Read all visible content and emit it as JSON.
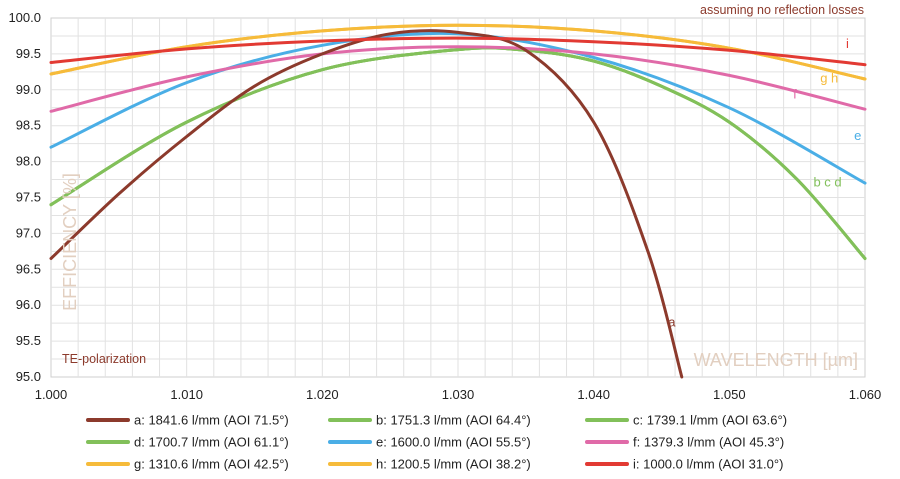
{
  "chart_data": {
    "type": "line",
    "xlabel": "WAVELENGTH [µm]",
    "ylabel": "EFFICIENCY [%]",
    "xlim": [
      1.0,
      1.06
    ],
    "ylim": [
      95.0,
      100.0
    ],
    "x_ticks": [
      "1.000",
      "1.010",
      "1.020",
      "1.030",
      "1.040",
      "1.050",
      "1.060"
    ],
    "y_ticks": [
      "95.0",
      "95.5",
      "96.0",
      "96.5",
      "97.0",
      "97.5",
      "98.0",
      "98.5",
      "99.0",
      "99.5",
      "100.0"
    ],
    "grid": true,
    "annotations": {
      "top_right": "assuming no reflection losses",
      "bottom_left": "TE-polarization"
    },
    "series": [
      {
        "id": "a",
        "name": "a: 1841.6 l/mm (AOI 71.5°)",
        "color": "#8c3a2c",
        "x": [
          1.0,
          1.005,
          1.01,
          1.015,
          1.02,
          1.025,
          1.03,
          1.035,
          1.04,
          1.044,
          1.0465
        ],
        "y": [
          96.65,
          97.55,
          98.35,
          99.05,
          99.5,
          99.78,
          99.8,
          99.55,
          98.55,
          96.75,
          95.0
        ]
      },
      {
        "id": "b",
        "name": "b: 1751.3 l/mm (AOI 64.4°)",
        "color": "#82c05a",
        "x": [
          1.0,
          1.01,
          1.02,
          1.03,
          1.035,
          1.04,
          1.045,
          1.05,
          1.055,
          1.06
        ],
        "y": [
          97.4,
          98.55,
          99.28,
          99.56,
          99.55,
          99.4,
          99.05,
          98.55,
          97.75,
          96.65
        ]
      },
      {
        "id": "c",
        "name": "c: 1739.1 l/mm (AOI 63.6°)",
        "color": "#82c05a",
        "x": [
          1.0,
          1.01,
          1.02,
          1.03,
          1.035,
          1.04,
          1.045,
          1.05,
          1.055,
          1.06
        ],
        "y": [
          97.4,
          98.55,
          99.28,
          99.56,
          99.55,
          99.4,
          99.05,
          98.55,
          97.75,
          96.65
        ]
      },
      {
        "id": "d",
        "name": "d: 1700.7 l/mm (AOI 61.1°)",
        "color": "#82c05a",
        "x": [
          1.0,
          1.01,
          1.02,
          1.03,
          1.035,
          1.04,
          1.045,
          1.05,
          1.055,
          1.06
        ],
        "y": [
          97.4,
          98.55,
          99.28,
          99.56,
          99.55,
          99.4,
          99.05,
          98.55,
          97.75,
          96.65
        ]
      },
      {
        "id": "e",
        "name": "e: 1600.0 l/mm (AOI 55.5°)",
        "color": "#4aaee6",
        "x": [
          1.0,
          1.01,
          1.02,
          1.03,
          1.04,
          1.05,
          1.06
        ],
        "y": [
          98.2,
          99.1,
          99.62,
          99.78,
          99.45,
          98.75,
          97.7
        ]
      },
      {
        "id": "f",
        "name": "f: 1379.3 l/mm (AOI 45.3°)",
        "color": "#e06aa8",
        "x": [
          1.0,
          1.01,
          1.02,
          1.03,
          1.04,
          1.05,
          1.06
        ],
        "y": [
          98.7,
          99.18,
          99.5,
          99.6,
          99.5,
          99.2,
          98.73
        ]
      },
      {
        "id": "g",
        "name": "g: 1310.6 l/mm (AOI 42.5°)",
        "color": "#f6bb3a",
        "x": [
          1.0,
          1.01,
          1.02,
          1.03,
          1.04,
          1.05,
          1.06
        ],
        "y": [
          99.22,
          99.6,
          99.82,
          99.9,
          99.82,
          99.58,
          99.15
        ]
      },
      {
        "id": "h",
        "name": "h: 1200.5 l/mm (AOI 38.2°)",
        "color": "#f6bb3a",
        "x": [
          1.0,
          1.01,
          1.02,
          1.03,
          1.04,
          1.05,
          1.06
        ],
        "y": [
          99.22,
          99.6,
          99.82,
          99.9,
          99.82,
          99.58,
          99.15
        ]
      },
      {
        "id": "i",
        "name": "i: 1000.0 l/mm (AOI 31.0°)",
        "color": "#e23a33",
        "x": [
          1.0,
          1.01,
          1.02,
          1.03,
          1.04,
          1.05,
          1.06
        ],
        "y": [
          99.38,
          99.57,
          99.68,
          99.72,
          99.67,
          99.55,
          99.35
        ]
      }
    ],
    "curve_labels": [
      {
        "text": "a",
        "color": "#8c3a2c",
        "x": 1.0455,
        "y": 95.7
      },
      {
        "text": "b c d",
        "color": "#82c05a",
        "x": 1.0562,
        "y": 97.65
      },
      {
        "text": "e",
        "color": "#4aaee6",
        "x": 1.0592,
        "y": 98.3
      },
      {
        "text": "f",
        "color": "#e06aa8",
        "x": 1.0547,
        "y": 98.88
      },
      {
        "text": "g h",
        "color": "#f6bb3a",
        "x": 1.0567,
        "y": 99.1
      },
      {
        "text": "i",
        "color": "#e23a33",
        "x": 1.0586,
        "y": 99.58
      }
    ]
  }
}
